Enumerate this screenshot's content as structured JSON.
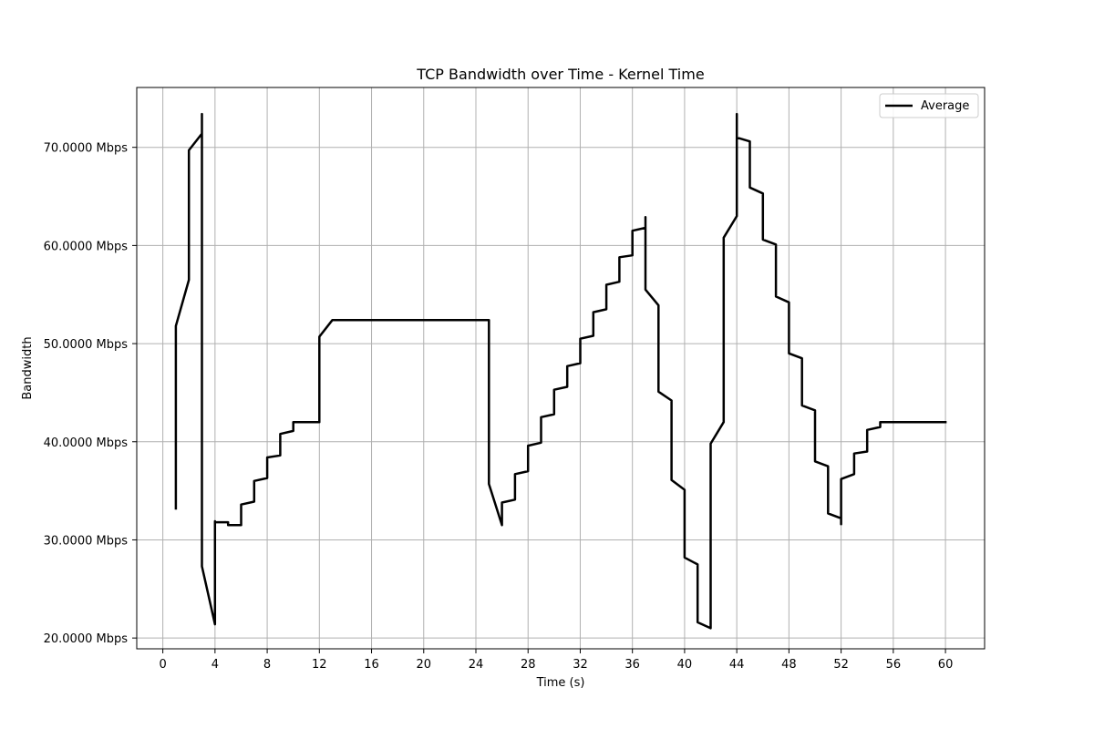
{
  "chart_data": {
    "type": "line",
    "title": "TCP Bandwidth over Time - Kernel Time",
    "xlabel": "Time (s)",
    "ylabel": "Bandwidth",
    "xlim": [
      -2,
      63
    ],
    "ylim": [
      18.9,
      76.1
    ],
    "x_ticks": [
      0,
      4,
      8,
      12,
      16,
      20,
      24,
      28,
      32,
      36,
      40,
      44,
      48,
      52,
      56,
      60
    ],
    "x_tick_labels": [
      "0",
      "4",
      "8",
      "12",
      "16",
      "20",
      "24",
      "28",
      "32",
      "36",
      "40",
      "44",
      "48",
      "52",
      "56",
      "60"
    ],
    "y_ticks": [
      20,
      30,
      40,
      50,
      60,
      70
    ],
    "y_tick_labels": [
      "20.0000 Mbps",
      "30.0000 Mbps",
      "40.0000 Mbps",
      "50.0000 Mbps",
      "60.0000 Mbps",
      "70.0000 Mbps"
    ],
    "grid": true,
    "legend_position": "top-right",
    "series": [
      {
        "name": "Average",
        "color": "#000000",
        "x": [
          1,
          1,
          2,
          2,
          3,
          3,
          3,
          4,
          4,
          4,
          5,
          5,
          6,
          6,
          7,
          7,
          8,
          8,
          9,
          9,
          10,
          10,
          11,
          12,
          12,
          13,
          14,
          15,
          16,
          17,
          18,
          19,
          20,
          21,
          22,
          23,
          24,
          25,
          25,
          26,
          26,
          27,
          27,
          28,
          28,
          29,
          29,
          30,
          30,
          31,
          31,
          32,
          32,
          33,
          33,
          34,
          34,
          35,
          35,
          36,
          36,
          37,
          37,
          37,
          38,
          38,
          39,
          39,
          40,
          40,
          41,
          41,
          42,
          42,
          43,
          43,
          44,
          44,
          44,
          45,
          45,
          46,
          46,
          47,
          47,
          48,
          48,
          49,
          49,
          50,
          50,
          51,
          51,
          52,
          52,
          52,
          53,
          53,
          54,
          54,
          55,
          55,
          56,
          57,
          58,
          59,
          60
        ],
        "y": [
          33.2,
          51.8,
          56.5,
          69.7,
          71.4,
          73.4,
          27.3,
          21.4,
          31.9,
          31.8,
          31.8,
          31.5,
          31.5,
          33.6,
          33.9,
          36.0,
          36.3,
          38.4,
          38.6,
          40.8,
          41.1,
          42.0,
          42.0,
          42.0,
          50.7,
          52.4,
          52.4,
          52.4,
          52.4,
          52.4,
          52.4,
          52.4,
          52.4,
          52.4,
          52.4,
          52.4,
          52.4,
          52.4,
          35.7,
          31.5,
          33.8,
          34.1,
          36.7,
          37.0,
          39.6,
          39.9,
          42.5,
          42.8,
          45.3,
          45.6,
          47.7,
          48.0,
          50.5,
          50.8,
          53.2,
          53.5,
          56.0,
          56.3,
          58.8,
          59.0,
          61.5,
          61.8,
          62.9,
          55.5,
          53.9,
          45.1,
          44.2,
          36.1,
          35.1,
          28.2,
          27.5,
          21.6,
          21.0,
          39.8,
          42.0,
          60.8,
          63.0,
          73.4,
          71.0,
          70.6,
          65.9,
          65.3,
          60.6,
          60.1,
          54.8,
          54.2,
          49.0,
          48.5,
          43.7,
          43.2,
          38.0,
          37.5,
          32.7,
          32.2,
          31.6,
          36.2,
          36.7,
          38.8,
          39.0,
          41.2,
          41.5,
          42.0,
          42.0,
          42.0,
          42.0,
          42.0,
          42.0
        ]
      }
    ]
  }
}
